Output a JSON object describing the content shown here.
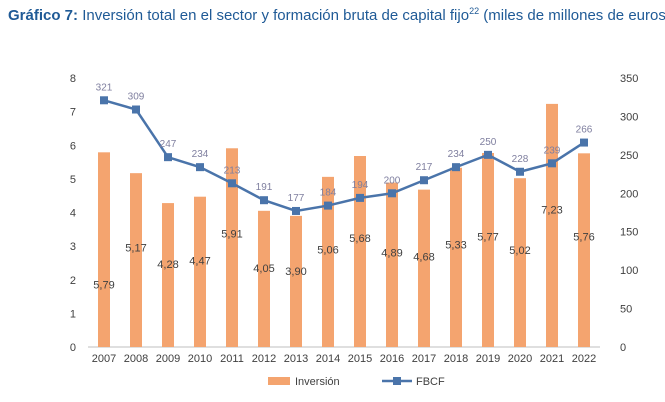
{
  "title": {
    "prefix": "Gráfico 7:",
    "text": "Inversión total en el sector y formación bruta de capital fijo",
    "superscript": "22",
    "suffix": "(miles de millones de euros)"
  },
  "chart_data": {
    "type": "bar+line",
    "categories": [
      "2007",
      "2008",
      "2009",
      "2010",
      "2011",
      "2012",
      "2013",
      "2014",
      "2015",
      "2016",
      "2017",
      "2018",
      "2019",
      "2020",
      "2021",
      "2022"
    ],
    "series": [
      {
        "name": "Inversión",
        "type": "bar",
        "axis": "left",
        "color": "#f4a46f",
        "values": [
          5.79,
          5.17,
          4.28,
          4.47,
          5.91,
          4.05,
          3.9,
          5.06,
          5.68,
          4.89,
          4.68,
          5.33,
          5.77,
          5.02,
          7.23,
          5.76
        ],
        "labels": [
          "5,79",
          "5,17",
          "4,28",
          "4,47",
          "5,91",
          "4,05",
          "3,90",
          "5,06",
          "5,68",
          "4,89",
          "4,68",
          "5,33",
          "5,77",
          "5,02",
          "7,23",
          "5,76"
        ]
      },
      {
        "name": "FBCF",
        "type": "line",
        "axis": "right",
        "color": "#4a74aa",
        "values": [
          321,
          309,
          247,
          234,
          213,
          191,
          177,
          184,
          194,
          200,
          217,
          234,
          250,
          228,
          239,
          266
        ],
        "labels": [
          "321",
          "309",
          "247",
          "234",
          "213",
          "191",
          "177",
          "184",
          "194",
          "200",
          "217",
          "234",
          "250",
          "228",
          "239",
          "266"
        ]
      }
    ],
    "y_left": {
      "min": 0,
      "max": 8,
      "ticks": [
        "0",
        "1",
        "2",
        "3",
        "4",
        "5",
        "6",
        "7",
        "8"
      ]
    },
    "y_right": {
      "min": 0,
      "max": 350,
      "ticks": [
        "0",
        "50",
        "100",
        "150",
        "200",
        "250",
        "300",
        "350"
      ]
    },
    "legend": {
      "position": "bottom",
      "items": [
        "Inversión",
        "FBCF"
      ]
    },
    "grid": false
  }
}
